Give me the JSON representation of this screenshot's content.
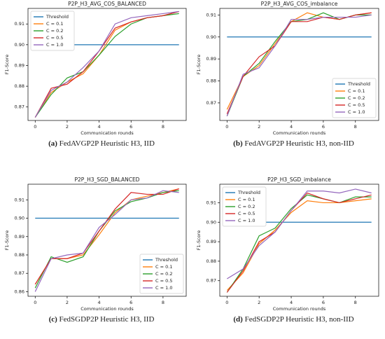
{
  "chart_data": [
    {
      "type": "line",
      "title": "P2P_H3_AVG_COS_BALANCED",
      "xlabel": "Communication rounds",
      "ylabel": "F1-Score",
      "caption_label": "(a)",
      "caption": "FedAVGP2P Heuristic H3, IID",
      "legend": "upper left",
      "x": [
        0,
        1,
        2,
        3,
        4,
        5,
        6,
        7,
        8,
        9
      ],
      "xlim": [
        -0.45,
        9.45
      ],
      "xticks": [
        0,
        2,
        4,
        6,
        8
      ],
      "ylim": [
        0.8635,
        0.9175
      ],
      "yticks": [
        0.87,
        0.88,
        0.89,
        {
          "value": 0.9,
          "label": "0.90"
        },
        0.91
      ],
      "series": [
        {
          "name": "Threshold",
          "color": "#1f77b4",
          "values": [
            0.9,
            0.9,
            0.9,
            0.9,
            0.9,
            0.9,
            0.9,
            0.9,
            0.9,
            0.9
          ]
        },
        {
          "name": "C = 0.1",
          "color": "#ff7f0e",
          "values": [
            0.865,
            0.877,
            0.882,
            0.886,
            0.895,
            0.907,
            0.911,
            0.913,
            0.914,
            0.916
          ]
        },
        {
          "name": "C = 0.2",
          "color": "#2ca02c",
          "values": [
            0.865,
            0.876,
            0.884,
            0.887,
            0.895,
            0.904,
            0.91,
            0.913,
            0.914,
            0.915
          ]
        },
        {
          "name": "C = 0.5",
          "color": "#d62728",
          "values": [
            0.865,
            0.879,
            0.881,
            0.887,
            0.897,
            0.908,
            0.911,
            0.913,
            0.914,
            0.916
          ]
        },
        {
          "name": "C = 1.0",
          "color": "#9467bd",
          "values": [
            0.865,
            0.878,
            0.882,
            0.889,
            0.897,
            0.91,
            0.913,
            0.914,
            0.915,
            0.916
          ]
        }
      ]
    },
    {
      "type": "line",
      "title": "P2P_H3_AVG_COS_imbalance",
      "xlabel": "Communication rounds",
      "ylabel": "F1-Score",
      "caption_label": "(b)",
      "caption": "FedAVGP2P Heuristic H3, non-IID",
      "legend": "lower right",
      "x": [
        0,
        1,
        2,
        3,
        4,
        5,
        6,
        7,
        8,
        9
      ],
      "xlim": [
        -0.45,
        9.45
      ],
      "xticks": [
        0,
        2,
        4,
        6,
        8
      ],
      "ylim": [
        0.862,
        0.913
      ],
      "yticks": [
        0.87,
        0.88,
        0.89,
        {
          "value": 0.9,
          "label": "0.90"
        },
        0.91
      ],
      "series": [
        {
          "name": "Threshold",
          "color": "#1f77b4",
          "values": [
            0.9,
            0.9,
            0.9,
            0.9,
            0.9,
            0.9,
            0.9,
            0.9,
            0.9,
            0.9
          ]
        },
        {
          "name": "C = 0.1",
          "color": "#ff7f0e",
          "values": [
            0.867,
            0.882,
            0.887,
            0.897,
            0.907,
            0.911,
            0.909,
            0.908,
            0.91,
            0.911
          ]
        },
        {
          "name": "C = 0.2",
          "color": "#2ca02c",
          "values": [
            0.864,
            0.882,
            0.888,
            0.898,
            0.907,
            0.908,
            0.911,
            0.908,
            0.91,
            0.91
          ]
        },
        {
          "name": "C = 0.5",
          "color": "#d62728",
          "values": [
            0.865,
            0.882,
            0.891,
            0.896,
            0.907,
            0.907,
            0.909,
            0.908,
            0.91,
            0.911
          ]
        },
        {
          "name": "C = 1.0",
          "color": "#9467bd",
          "values": [
            0.864,
            0.883,
            0.886,
            0.896,
            0.908,
            0.908,
            0.909,
            0.909,
            0.909,
            0.91
          ]
        }
      ]
    },
    {
      "type": "line",
      "title": "P2P_H3_SGD_BALANCED",
      "xlabel": "Communication rounds",
      "ylabel": "F1-Score",
      "caption_label": "(c)",
      "caption": "FedSGDP2P Heuristic H3, IID",
      "legend": "lower right",
      "x": [
        0,
        1,
        2,
        3,
        4,
        5,
        6,
        7,
        8,
        9
      ],
      "xlim": [
        -0.45,
        9.45
      ],
      "xticks": [
        0,
        2,
        4,
        6,
        8
      ],
      "ylim": [
        0.8575,
        0.9185
      ],
      "yticks": [
        0.86,
        0.87,
        0.88,
        0.89,
        {
          "value": 0.9,
          "label": "0.90"
        },
        0.91
      ],
      "series": [
        {
          "name": "Threshold",
          "color": "#1f77b4",
          "values": [
            0.9,
            0.9,
            0.9,
            0.9,
            0.9,
            0.9,
            0.9,
            0.9,
            0.9,
            0.9
          ]
        },
        {
          "name": "C = 0.1",
          "color": "#ff7f0e",
          "values": [
            0.864,
            0.878,
            0.878,
            0.88,
            0.891,
            0.903,
            0.91,
            0.912,
            0.914,
            0.916
          ]
        },
        {
          "name": "C = 0.2",
          "color": "#2ca02c",
          "values": [
            0.862,
            0.879,
            0.876,
            0.879,
            0.893,
            0.904,
            0.909,
            0.911,
            0.914,
            0.915
          ]
        },
        {
          "name": "C = 0.5",
          "color": "#d62728",
          "values": [
            0.864,
            0.878,
            0.878,
            0.881,
            0.893,
            0.905,
            0.914,
            0.913,
            0.913,
            0.916
          ]
        },
        {
          "name": "C = 1.0",
          "color": "#9467bd",
          "values": [
            0.86,
            0.878,
            0.88,
            0.881,
            0.895,
            0.902,
            0.91,
            0.911,
            0.915,
            0.914
          ]
        }
      ]
    },
    {
      "type": "line",
      "title": "P2P_H3_SGD_imbalance",
      "xlabel": "Communication rounds",
      "ylabel": "F1-Score",
      "caption_label": "(d)",
      "caption": "FedSGDP2P Heuristic H3, non-IID",
      "legend": "upper left",
      "x": [
        0,
        1,
        2,
        3,
        4,
        5,
        6,
        7,
        8,
        9
      ],
      "xlim": [
        -0.45,
        9.45
      ],
      "xticks": [
        0,
        2,
        4,
        6,
        8
      ],
      "ylim": [
        0.862,
        0.9195
      ],
      "yticks": [
        0.87,
        0.88,
        0.89,
        {
          "value": 0.9,
          "label": "0.90"
        },
        0.91
      ],
      "series": [
        {
          "name": "Threshold",
          "color": "#1f77b4",
          "values": [
            0.9,
            0.9,
            0.9,
            0.9,
            0.9,
            0.9,
            0.9,
            0.9,
            0.9,
            0.9
          ]
        },
        {
          "name": "C = 0.1",
          "color": "#ff7f0e",
          "values": [
            0.865,
            0.874,
            0.889,
            0.896,
            0.905,
            0.911,
            0.91,
            0.91,
            0.911,
            0.912
          ]
        },
        {
          "name": "C = 0.2",
          "color": "#2ca02c",
          "values": [
            0.864,
            0.876,
            0.893,
            0.897,
            0.907,
            0.914,
            0.912,
            0.91,
            0.913,
            0.913
          ]
        },
        {
          "name": "C = 0.5",
          "color": "#d62728",
          "values": [
            0.864,
            0.875,
            0.89,
            0.895,
            0.906,
            0.915,
            0.912,
            0.91,
            0.912,
            0.914
          ]
        },
        {
          "name": "C = 1.0",
          "color": "#9467bd",
          "values": [
            0.871,
            0.876,
            0.888,
            0.895,
            0.906,
            0.916,
            0.916,
            0.915,
            0.917,
            0.915
          ]
        }
      ]
    }
  ]
}
